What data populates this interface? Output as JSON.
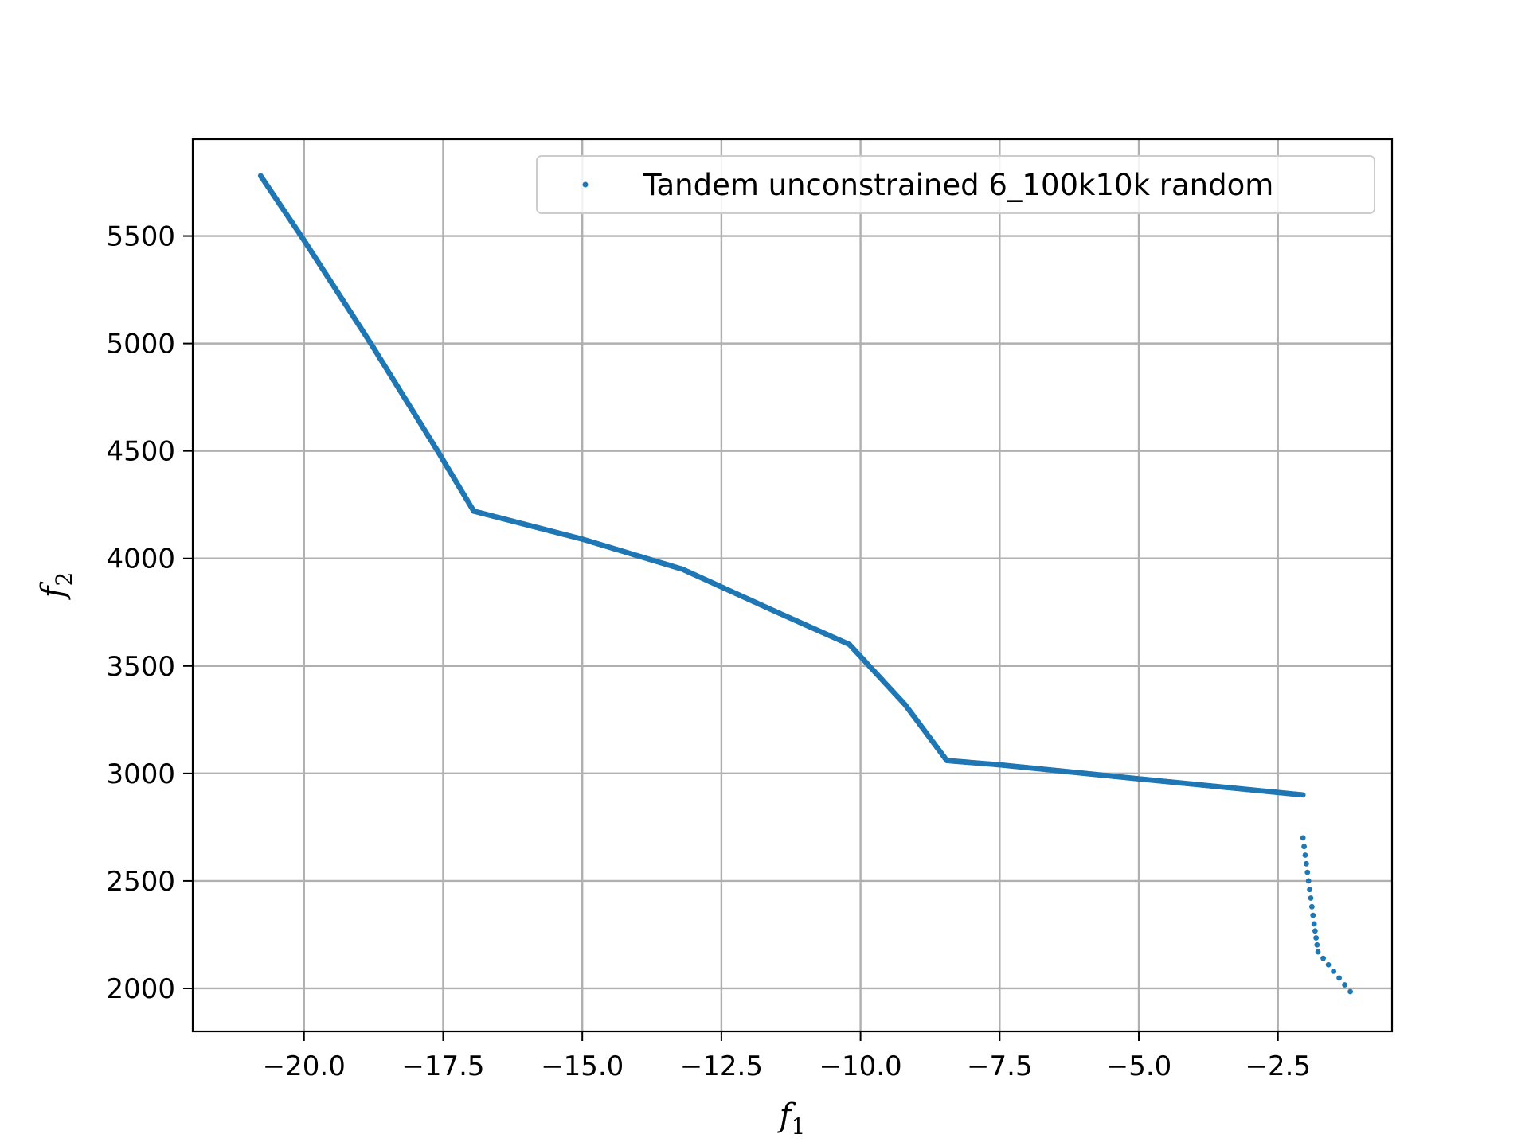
{
  "chart_data": {
    "type": "scatter",
    "xlabel": "f",
    "xlabel_sub": "1",
    "ylabel": "f",
    "ylabel_sub": "2",
    "xlim": [
      -22.0,
      -0.45
    ],
    "ylim": [
      1800,
      5950
    ],
    "xticks": [
      -20.0,
      -17.5,
      -15.0,
      -12.5,
      -10.0,
      -7.5,
      -5.0,
      -2.5
    ],
    "xtick_labels": [
      "−20.0",
      "−17.5",
      "−15.0",
      "−12.5",
      "−10.0",
      "−7.5",
      "−5.0",
      "−2.5"
    ],
    "yticks": [
      2000,
      2500,
      3000,
      3500,
      4000,
      4500,
      5000,
      5500
    ],
    "ytick_labels": [
      "2000",
      "2500",
      "3000",
      "3500",
      "4000",
      "4500",
      "5000",
      "5500"
    ],
    "grid": true,
    "legend": {
      "position": "top-right"
    },
    "series": [
      {
        "name": "Tandem unconstrained 6_100k10k random",
        "color": "#1f77b4",
        "segments": [
          {
            "points": [
              [
                -20.78,
                5780
              ],
              [
                -20.0,
                5480
              ],
              [
                -18.8,
                5000
              ],
              [
                -17.6,
                4500
              ],
              [
                -16.95,
                4220
              ],
              [
                -15.0,
                4090
              ],
              [
                -13.2,
                3950
              ],
              [
                -11.5,
                3750
              ],
              [
                -10.2,
                3600
              ],
              [
                -9.2,
                3320
              ],
              [
                -8.45,
                3060
              ],
              [
                -7.5,
                3040
              ],
              [
                -5.0,
                2975
              ],
              [
                -2.05,
                2900
              ]
            ]
          },
          {
            "points": [
              [
                -2.05,
                2700
              ],
              [
                -1.95,
                2500
              ],
              [
                -1.85,
                2300
              ],
              [
                -1.78,
                2170
              ],
              [
                -1.5,
                2080
              ],
              [
                -1.2,
                1985
              ]
            ]
          }
        ]
      }
    ]
  }
}
